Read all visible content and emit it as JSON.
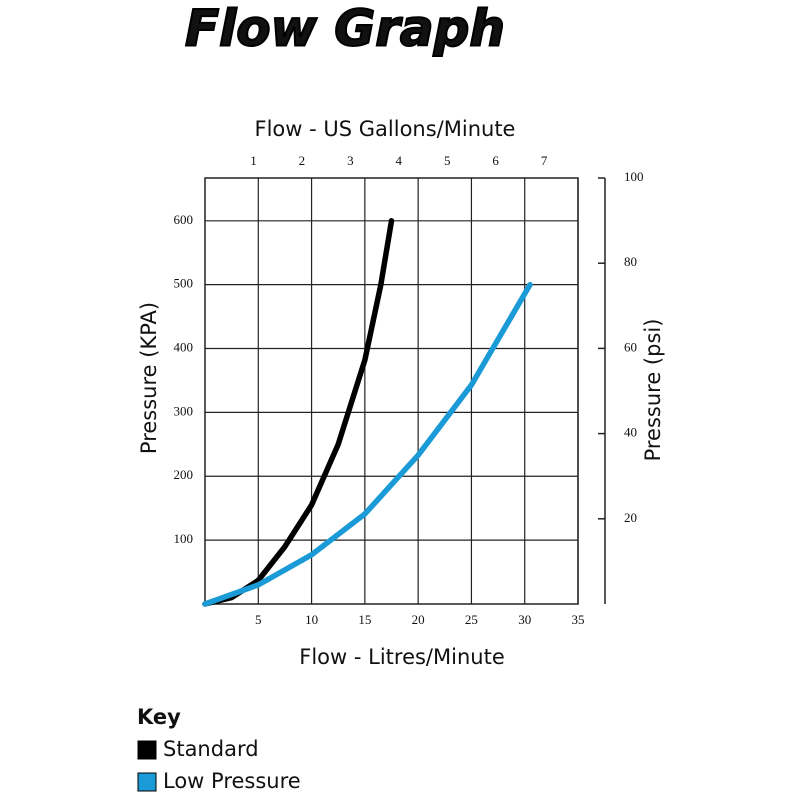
{
  "chart_data": {
    "type": "line",
    "title": "Flow Graph",
    "x_label": "Flow - Litres/Minute",
    "x2_label": "Flow - US Gallons/Minute",
    "y_label": "Pressure (KPA)",
    "y2_label": "Pressure (psi)",
    "xlim": [
      0,
      35
    ],
    "xticks": [
      5,
      10,
      15,
      20,
      25,
      30,
      35
    ],
    "x2lim": [
      0,
      7.7
    ],
    "x2ticks": [
      1,
      2,
      3,
      4,
      5,
      6,
      7
    ],
    "ylim": [
      0,
      667
    ],
    "yticks": [
      100,
      200,
      300,
      400,
      500,
      600
    ],
    "y2lim": [
      0,
      100
    ],
    "y2ticks": [
      20,
      40,
      60,
      80,
      100
    ],
    "grid": true,
    "legend_title": "Key",
    "series": [
      {
        "name": "Standard",
        "color": "#000000",
        "x": [
          0,
          2.5,
          5,
          7.5,
          10,
          12.5,
          15,
          16.5,
          17.5
        ],
        "values": [
          0,
          10,
          37,
          90,
          155,
          250,
          382,
          500,
          600
        ]
      },
      {
        "name": "Low Pressure",
        "color": "#1a9ad6",
        "x": [
          0,
          5,
          10,
          15,
          20,
          25,
          30.5
        ],
        "values": [
          0,
          30,
          77,
          141,
          233,
          343,
          500
        ]
      }
    ]
  }
}
